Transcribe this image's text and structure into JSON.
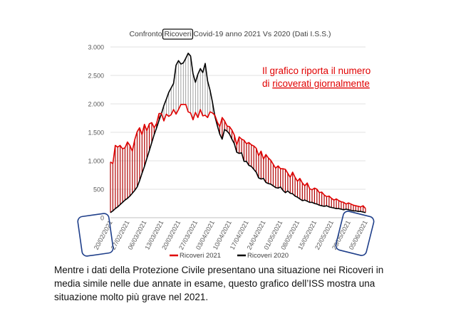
{
  "chart_data": {
    "type": "area",
    "title": {
      "prefix": "Confronto ",
      "highlight": "Ricoveri",
      "suffix": " Covid-19 anno 2021 Vs 2020 (Dati I.S.S.)"
    },
    "annotation": {
      "line1": "Il grafico riporta il numero",
      "line2_prefix": "di ",
      "line2_underlined": "ricoverati giornalmente"
    },
    "ylim": [
      0,
      3000
    ],
    "y_ticks": [
      0,
      500,
      1000,
      1500,
      2000,
      2500,
      3000
    ],
    "y_tick_labels": [
      "0",
      "500",
      "1.000",
      "1.500",
      "2.000",
      "2.500",
      "3.000"
    ],
    "grid": true,
    "x_start": "20/02/2021",
    "x_end": "05/06/2021",
    "x_tick_labels": [
      "20/02/2021",
      "27/02/2021",
      "06/03/2021",
      "13/03/2021",
      "20/03/2021",
      "27/03/2021",
      "03/04/2021",
      "10/04/2021",
      "17/04/2021",
      "24/04/2021",
      "01/05/2021",
      "08/05/2021",
      "15/05/2021",
      "22/05/2021",
      "29/05/2021",
      "05/06/2021"
    ],
    "highlighted_ticks": [
      "20/02/2021",
      "05/06/2021"
    ],
    "legend_position": "bottom",
    "series": [
      {
        "name": "Ricoveri 2021",
        "color": "#e00000",
        "values": [
          980,
          950,
          1270,
          1240,
          1270,
          1210,
          1230,
          1330,
          1270,
          1170,
          1370,
          1510,
          1580,
          1460,
          1640,
          1530,
          1650,
          1670,
          1580,
          1660,
          1830,
          1830,
          1700,
          1820,
          1780,
          1810,
          1900,
          1820,
          1900,
          1990,
          1990,
          1990,
          1860,
          1840,
          1720,
          1850,
          1760,
          1900,
          1790,
          1800,
          1760,
          1860,
          1840,
          1800,
          1680,
          1600,
          1760,
          1700,
          1610,
          1600,
          1540,
          1450,
          1280,
          1420,
          1380,
          1360,
          1300,
          1320,
          1280,
          1260,
          1220,
          1090,
          1170,
          1030,
          1110,
          1050,
          1010,
          940,
          870,
          910,
          860,
          860,
          850,
          780,
          710,
          800,
          710,
          640,
          690,
          610,
          560,
          610,
          510,
          490,
          520,
          500,
          440,
          450,
          400,
          370,
          380,
          340,
          310,
          330,
          300,
          280,
          270,
          240,
          260,
          240,
          220,
          210,
          200,
          190,
          210,
          160
        ]
      },
      {
        "name": "Ricoveri 2020",
        "color": "#000000",
        "values": [
          90,
          120,
          160,
          190,
          230,
          270,
          310,
          340,
          380,
          430,
          480,
          540,
          650,
          780,
          900,
          1040,
          1180,
          1320,
          1460,
          1580,
          1710,
          1830,
          1970,
          2080,
          2200,
          2280,
          2360,
          2680,
          2760,
          2700,
          2720,
          2800,
          2890,
          2840,
          2530,
          2380,
          2520,
          2620,
          2550,
          2710,
          2400,
          2240,
          2030,
          1780,
          1620,
          1470,
          1380,
          1550,
          1520,
          1470,
          1380,
          1300,
          1150,
          1130,
          1140,
          990,
          990,
          920,
          900,
          850,
          800,
          700,
          680,
          690,
          620,
          600,
          590,
          560,
          530,
          520,
          540,
          480,
          440,
          470,
          430,
          420,
          380,
          360,
          330,
          300,
          310,
          290,
          270,
          270,
          250,
          240,
          220,
          210,
          200,
          210,
          190,
          180,
          170,
          160,
          160,
          150,
          140,
          150,
          140,
          130,
          120,
          120,
          110,
          110,
          100,
          90
        ]
      }
    ]
  },
  "caption": {
    "line1": "Mentre i dati della Protezione Civile presentano una situazione nei Ricoveri in",
    "line2": "media simile nelle due annate in esame, questo grafico dell’ISS mostra una",
    "line3": "situazione molto più grave nel 2021."
  }
}
